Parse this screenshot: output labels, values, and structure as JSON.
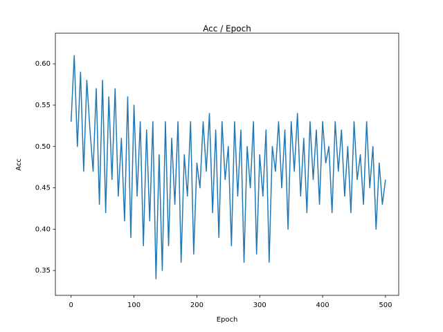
{
  "chart_data": {
    "type": "line",
    "title": "Acc / Epoch",
    "x_label": "Epoch",
    "y_label": "Acc",
    "x": [
      0,
      5,
      10,
      15,
      20,
      25,
      30,
      35,
      40,
      45,
      50,
      55,
      60,
      65,
      70,
      75,
      80,
      85,
      90,
      95,
      100,
      105,
      110,
      115,
      120,
      125,
      130,
      135,
      140,
      145,
      150,
      155,
      160,
      165,
      170,
      175,
      180,
      185,
      190,
      195,
      200,
      205,
      210,
      215,
      220,
      225,
      230,
      235,
      240,
      245,
      250,
      255,
      260,
      265,
      270,
      275,
      280,
      285,
      290,
      295,
      300,
      305,
      310,
      315,
      320,
      325,
      330,
      335,
      340,
      345,
      350,
      355,
      360,
      365,
      370,
      375,
      380,
      385,
      390,
      395,
      400,
      405,
      410,
      415,
      420,
      425,
      430,
      435,
      440,
      445,
      450,
      455,
      460,
      465,
      470,
      475,
      480,
      485,
      490,
      495,
      500
    ],
    "series": [
      {
        "color": "#1f77b4",
        "values": [
          0.53,
          0.61,
          0.5,
          0.59,
          0.47,
          0.58,
          0.52,
          0.47,
          0.57,
          0.43,
          0.58,
          0.42,
          0.56,
          0.46,
          0.57,
          0.44,
          0.51,
          0.41,
          0.56,
          0.39,
          0.55,
          0.44,
          0.53,
          0.38,
          0.52,
          0.41,
          0.53,
          0.34,
          0.49,
          0.35,
          0.53,
          0.38,
          0.51,
          0.43,
          0.53,
          0.36,
          0.49,
          0.44,
          0.53,
          0.37,
          0.48,
          0.45,
          0.53,
          0.47,
          0.54,
          0.42,
          0.52,
          0.39,
          0.53,
          0.46,
          0.5,
          0.38,
          0.53,
          0.44,
          0.52,
          0.36,
          0.5,
          0.45,
          0.53,
          0.37,
          0.49,
          0.44,
          0.52,
          0.36,
          0.5,
          0.47,
          0.53,
          0.45,
          0.52,
          0.4,
          0.53,
          0.47,
          0.54,
          0.44,
          0.51,
          0.42,
          0.53,
          0.46,
          0.52,
          0.43,
          0.53,
          0.48,
          0.5,
          0.42,
          0.53,
          0.47,
          0.52,
          0.44,
          0.5,
          0.42,
          0.53,
          0.46,
          0.49,
          0.43,
          0.53,
          0.45,
          0.5,
          0.4,
          0.48,
          0.43,
          0.46
        ]
      }
    ],
    "xlim": [
      -25,
      521
    ],
    "ylim": [
      0.32,
      0.637
    ],
    "xticks": [
      0,
      100,
      200,
      300,
      400,
      500
    ],
    "yticks": [
      0.35,
      {
        "value": 0.4,
        "label": "0.40"
      },
      0.45,
      {
        "value": 0.5,
        "label": "0.50"
      },
      0.55,
      {
        "value": 0.6,
        "label": "0.60"
      }
    ]
  }
}
